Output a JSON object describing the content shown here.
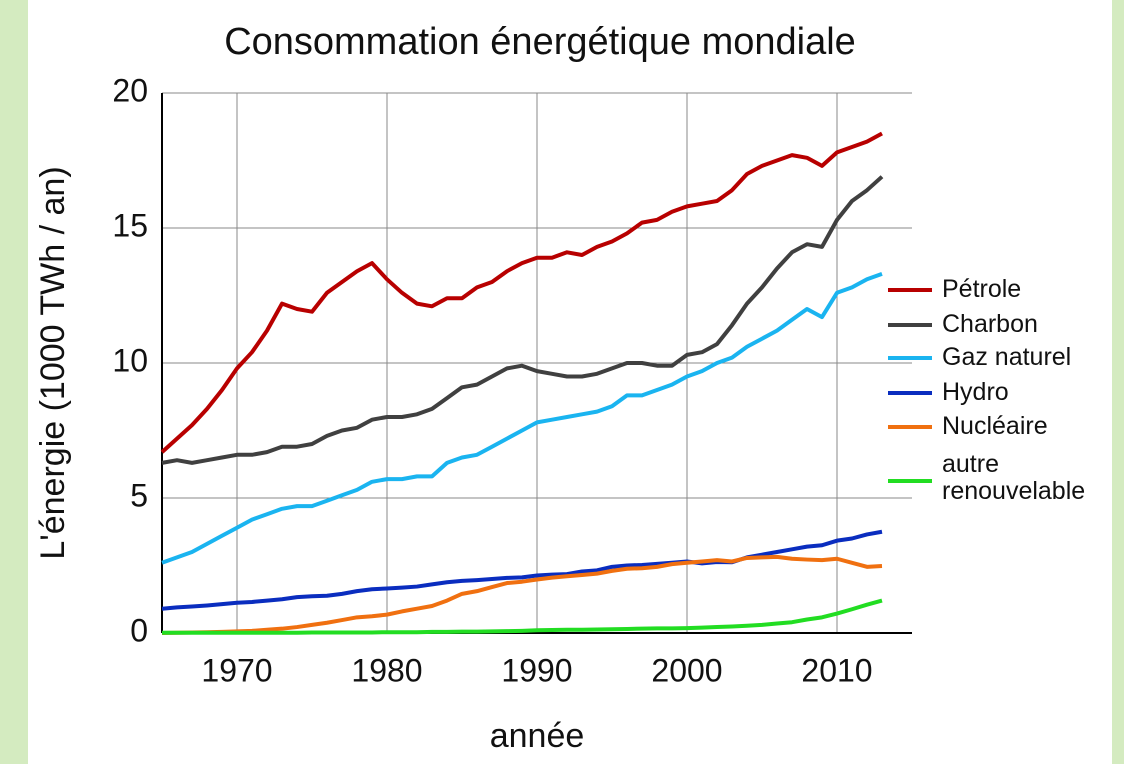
{
  "chart_data": {
    "type": "line",
    "title": "Consommation énergétique mondiale",
    "xlabel": "année",
    "ylabel": "L'énergie (1000 TWh / an)",
    "x": [
      1965,
      1966,
      1967,
      1968,
      1969,
      1970,
      1971,
      1972,
      1973,
      1974,
      1975,
      1976,
      1977,
      1978,
      1979,
      1980,
      1981,
      1982,
      1983,
      1984,
      1985,
      1986,
      1987,
      1988,
      1989,
      1990,
      1991,
      1992,
      1993,
      1994,
      1995,
      1996,
      1997,
      1998,
      1999,
      2000,
      2001,
      2002,
      2003,
      2004,
      2005,
      2006,
      2007,
      2008,
      2009,
      2010,
      2011,
      2012,
      2013
    ],
    "xlim": [
      1965,
      2015
    ],
    "xticks": [
      1970,
      1980,
      1990,
      2000,
      2010
    ],
    "ylim": [
      0,
      20
    ],
    "yticks": [
      0,
      5,
      10,
      15,
      20
    ],
    "grid": true,
    "legend": "right",
    "series": [
      {
        "name": "Pétrole",
        "color": "#b80000",
        "values": [
          6.7,
          7.2,
          7.7,
          8.3,
          9.0,
          9.8,
          10.4,
          11.2,
          12.2,
          12.0,
          11.9,
          12.6,
          13.0,
          13.4,
          13.7,
          13.1,
          12.6,
          12.2,
          12.1,
          12.4,
          12.4,
          12.8,
          13.0,
          13.4,
          13.7,
          13.9,
          13.9,
          14.1,
          14.0,
          14.3,
          14.5,
          14.8,
          15.2,
          15.3,
          15.6,
          15.8,
          15.9,
          16.0,
          16.4,
          17.0,
          17.3,
          17.5,
          17.7,
          17.6,
          17.3,
          17.8,
          18.0,
          18.2,
          18.5
        ]
      },
      {
        "name": "Charbon",
        "color": "#404040",
        "values": [
          6.3,
          6.4,
          6.3,
          6.4,
          6.5,
          6.6,
          6.6,
          6.7,
          6.9,
          6.9,
          7.0,
          7.3,
          7.5,
          7.6,
          7.9,
          8.0,
          8.0,
          8.1,
          8.3,
          8.7,
          9.1,
          9.2,
          9.5,
          9.8,
          9.9,
          9.7,
          9.6,
          9.5,
          9.5,
          9.6,
          9.8,
          10.0,
          10.0,
          9.9,
          9.9,
          10.3,
          10.4,
          10.7,
          11.4,
          12.2,
          12.8,
          13.5,
          14.1,
          14.4,
          14.3,
          15.3,
          16.0,
          16.4,
          16.9
        ]
      },
      {
        "name": "Gaz naturel",
        "color": "#1ab4f0",
        "values": [
          2.6,
          2.8,
          3.0,
          3.3,
          3.6,
          3.9,
          4.2,
          4.4,
          4.6,
          4.7,
          4.7,
          4.9,
          5.1,
          5.3,
          5.6,
          5.7,
          5.7,
          5.8,
          5.8,
          6.3,
          6.5,
          6.6,
          6.9,
          7.2,
          7.5,
          7.8,
          7.9,
          8.0,
          8.1,
          8.2,
          8.4,
          8.8,
          8.8,
          9.0,
          9.2,
          9.5,
          9.7,
          10.0,
          10.2,
          10.6,
          10.9,
          11.2,
          11.6,
          12.0,
          11.7,
          12.6,
          12.8,
          13.1,
          13.3
        ]
      },
      {
        "name": "Hydro",
        "color": "#0a2dbf",
        "values": [
          0.9,
          0.95,
          0.98,
          1.02,
          1.07,
          1.12,
          1.15,
          1.2,
          1.25,
          1.33,
          1.36,
          1.38,
          1.45,
          1.55,
          1.62,
          1.65,
          1.68,
          1.72,
          1.8,
          1.88,
          1.93,
          1.96,
          2.0,
          2.04,
          2.06,
          2.13,
          2.16,
          2.18,
          2.28,
          2.32,
          2.45,
          2.5,
          2.52,
          2.56,
          2.6,
          2.65,
          2.58,
          2.63,
          2.62,
          2.8,
          2.9,
          3.0,
          3.1,
          3.2,
          3.25,
          3.42,
          3.5,
          3.65,
          3.75
        ]
      },
      {
        "name": "Nucléaire",
        "color": "#f07010",
        "values": [
          0.0,
          0.01,
          0.02,
          0.03,
          0.04,
          0.06,
          0.08,
          0.12,
          0.16,
          0.22,
          0.3,
          0.38,
          0.48,
          0.58,
          0.62,
          0.68,
          0.8,
          0.9,
          1.0,
          1.2,
          1.45,
          1.55,
          1.7,
          1.85,
          1.9,
          1.98,
          2.05,
          2.1,
          2.15,
          2.2,
          2.3,
          2.38,
          2.4,
          2.45,
          2.55,
          2.6,
          2.65,
          2.7,
          2.65,
          2.78,
          2.8,
          2.82,
          2.75,
          2.72,
          2.7,
          2.75,
          2.6,
          2.45,
          2.48
        ]
      },
      {
        "name": "autre renouvelable",
        "color": "#22dd22",
        "values": [
          0.01,
          0.01,
          0.01,
          0.01,
          0.01,
          0.01,
          0.01,
          0.01,
          0.01,
          0.01,
          0.02,
          0.02,
          0.02,
          0.02,
          0.02,
          0.03,
          0.03,
          0.03,
          0.04,
          0.04,
          0.05,
          0.05,
          0.06,
          0.07,
          0.08,
          0.1,
          0.11,
          0.12,
          0.12,
          0.13,
          0.14,
          0.15,
          0.16,
          0.17,
          0.17,
          0.18,
          0.2,
          0.22,
          0.24,
          0.27,
          0.3,
          0.35,
          0.4,
          0.5,
          0.58,
          0.72,
          0.88,
          1.05,
          1.2
        ]
      }
    ]
  }
}
